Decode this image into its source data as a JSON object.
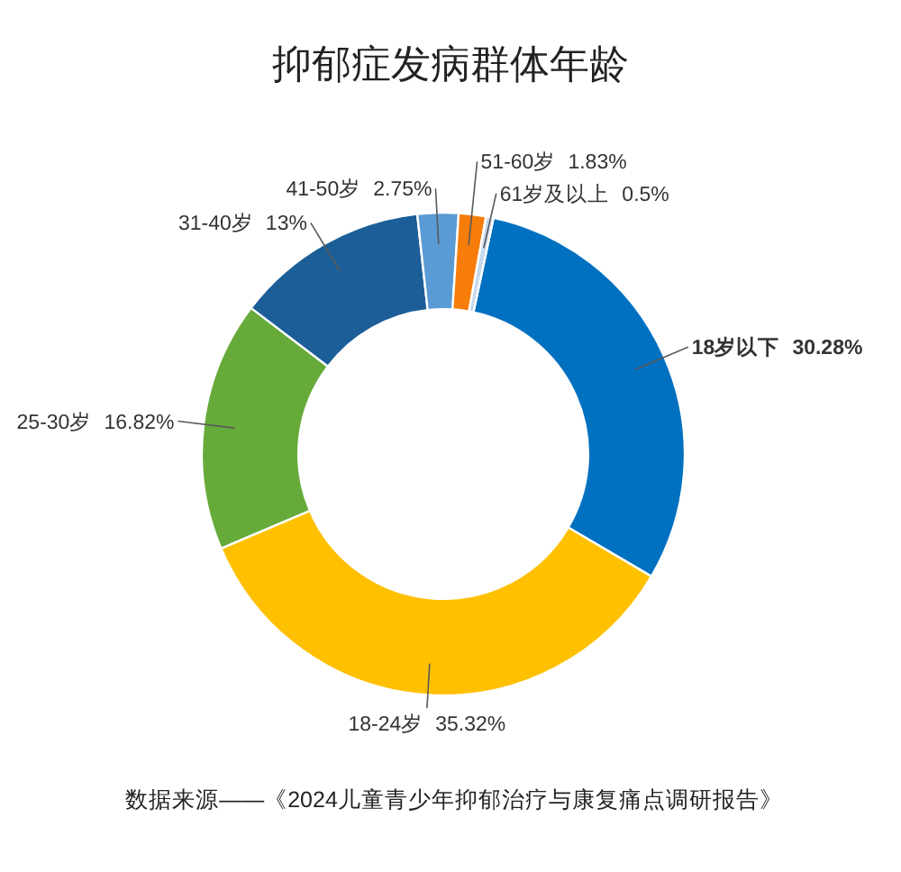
{
  "chart_data": {
    "type": "donut",
    "title": "抑郁症发病群体年龄",
    "categories": [
      "**18岁以下**",
      "18-24岁",
      "25-30岁",
      "31-40岁",
      "41-50岁",
      "51-60岁",
      "61岁及以上"
    ],
    "values": [
      30.28,
      35.32,
      16.82,
      13,
      2.75,
      1.83,
      0.5
    ],
    "value_labels": [
      "**30.28%**",
      "35.32%",
      "16.82%",
      "13%",
      "2.75%",
      "1.83%",
      "0.5%"
    ],
    "colors": [
      "#0070c0",
      "#ffc000",
      "#66ab3a",
      "#1b5e98",
      "#5b9bd5",
      "#f77d0a",
      "#c5d9ee"
    ],
    "annotations": [
      "数据来源——《2024儿童青少年抑郁治疗与康复痛点调研报告》"
    ]
  }
}
